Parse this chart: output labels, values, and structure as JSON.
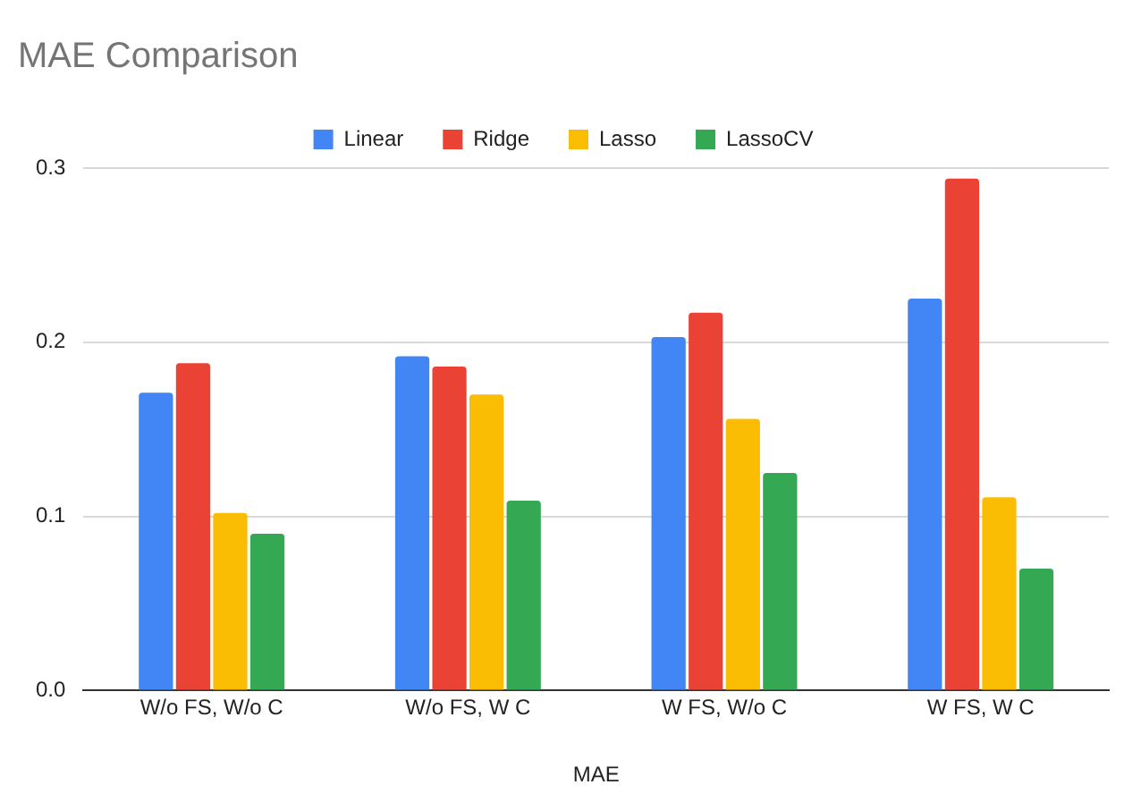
{
  "chart_data": {
    "type": "bar",
    "title": "MAE Comparison",
    "xlabel": "MAE",
    "categories": [
      "W/o FS, W/o C",
      "W/o FS, W C",
      "W FS, W/o C",
      "W FS, W C"
    ],
    "series": [
      {
        "name": "Linear",
        "color": "#4285f4",
        "values": [
          0.171,
          0.192,
          0.203,
          0.225
        ]
      },
      {
        "name": "Ridge",
        "color": "#ea4335",
        "values": [
          0.188,
          0.186,
          0.217,
          0.294
        ]
      },
      {
        "name": "Lasso",
        "color": "#fbbc04",
        "values": [
          0.102,
          0.17,
          0.156,
          0.111
        ]
      },
      {
        "name": "LassoCV",
        "color": "#34a853",
        "values": [
          0.09,
          0.109,
          0.125,
          0.07
        ]
      }
    ],
    "ylim": [
      0,
      0.3
    ],
    "yticks": [
      {
        "value": 0,
        "label": "0.0"
      },
      {
        "value": 0.1,
        "label": "0.1"
      },
      {
        "value": 0.2,
        "label": "0.2"
      },
      {
        "value": 0.3,
        "label": "0.3"
      }
    ],
    "grid": "y",
    "legend": "top"
  }
}
